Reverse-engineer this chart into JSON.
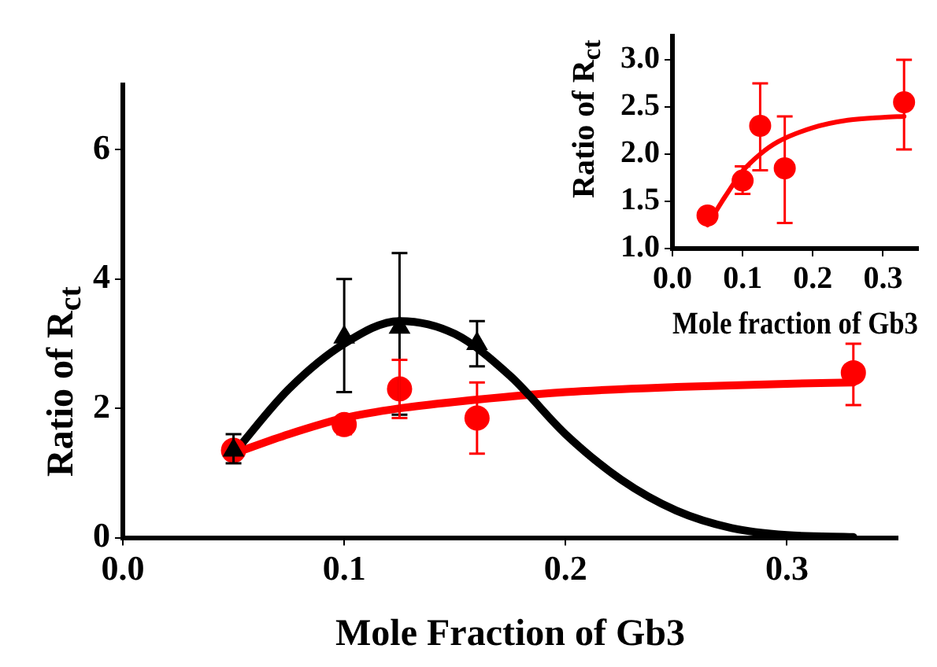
{
  "chart_data": [
    {
      "type": "scatter",
      "xlabel": "Mole Fraction of Gb3",
      "ylabel": "Ratio of R$_{ct}$",
      "xlim": [
        0,
        0.35
      ],
      "ylim": [
        0,
        7
      ],
      "xticks": [
        {
          "value": 0,
          "label": "0.0"
        },
        0.1,
        0.2,
        0.3
      ],
      "yticks": [
        0,
        2,
        4,
        6
      ],
      "series": [
        {
          "type": "line",
          "color": "#000000",
          "marker": "none",
          "x": [
            0.05,
            0.075,
            0.1,
            0.125,
            0.15,
            0.175,
            0.2,
            0.225,
            0.25,
            0.275,
            0.3,
            0.33
          ],
          "values": [
            1.3,
            2.3,
            3.0,
            3.35,
            3.15,
            2.5,
            1.6,
            0.9,
            0.42,
            0.15,
            0.04,
            0.01
          ]
        },
        {
          "type": "line",
          "color": "#ff0000",
          "marker": "none",
          "x": [
            0.05,
            0.075,
            0.1,
            0.125,
            0.15,
            0.2,
            0.25,
            0.3,
            0.33
          ],
          "values": [
            1.3,
            1.6,
            1.85,
            2.0,
            2.1,
            2.25,
            2.33,
            2.38,
            2.4
          ]
        },
        {
          "type": "scatter",
          "color": "#000000",
          "marker": "triangle",
          "x": [
            0.05,
            0.1,
            0.125,
            0.16
          ],
          "values": [
            1.35,
            3.1,
            3.25,
            3.0
          ],
          "errors": [
            [
              1.15,
              1.6
            ],
            [
              2.25,
              4.0
            ],
            [
              1.9,
              4.4
            ],
            [
              2.65,
              3.35
            ]
          ]
        },
        {
          "type": "scatter",
          "color": "#ff0000",
          "marker": "circle",
          "x": [
            0.05,
            0.1,
            0.125,
            0.16,
            0.33
          ],
          "values": [
            1.35,
            1.75,
            2.3,
            1.85,
            2.55
          ],
          "errors": [
            null,
            [
              1.6,
              1.87
            ],
            [
              1.85,
              2.75
            ],
            [
              1.3,
              2.4
            ],
            [
              2.05,
              3.0
            ]
          ]
        }
      ]
    },
    {
      "type": "scatter",
      "xlabel": "Mole fraction of Gb3",
      "ylabel": "Ratio of R$_{ct}$",
      "xlim": [
        0,
        0.35
      ],
      "ylim": [
        1,
        3.25
      ],
      "xticks": [
        {
          "value": 0,
          "label": "0.0"
        },
        0.1,
        0.2,
        0.3
      ],
      "yticks": [
        {
          "value": 1,
          "label": "1.0"
        },
        1.5,
        {
          "value": 2,
          "label": "2.0"
        },
        2.5,
        {
          "value": 3,
          "label": "3.0"
        }
      ],
      "series": [
        {
          "type": "line",
          "color": "#ff0000",
          "marker": "none",
          "x": [
            0.05,
            0.075,
            0.1,
            0.125,
            0.15,
            0.2,
            0.25,
            0.3,
            0.33
          ],
          "values": [
            1.25,
            1.55,
            1.82,
            2.0,
            2.13,
            2.28,
            2.36,
            2.39,
            2.4
          ]
        },
        {
          "type": "scatter",
          "color": "#ff0000",
          "marker": "circle",
          "x": [
            0.05,
            0.1,
            0.125,
            0.16,
            0.33
          ],
          "values": [
            1.35,
            1.72,
            2.3,
            1.85,
            2.55
          ],
          "errors": [
            null,
            [
              1.58,
              1.87
            ],
            [
              1.83,
              2.75
            ],
            [
              1.27,
              2.4
            ],
            [
              2.05,
              3.0
            ]
          ]
        }
      ]
    }
  ]
}
